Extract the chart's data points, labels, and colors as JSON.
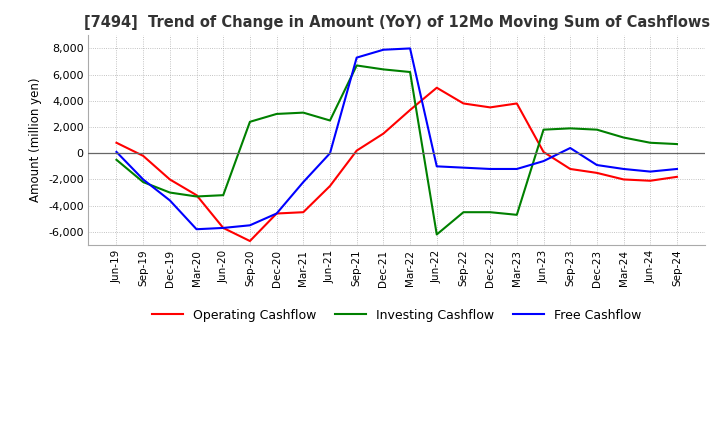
{
  "title": "[7494]  Trend of Change in Amount (YoY) of 12Mo Moving Sum of Cashflows",
  "ylabel": "Amount (million yen)",
  "ylim": [
    -7000,
    9000
  ],
  "yticks": [
    -6000,
    -4000,
    -2000,
    0,
    2000,
    4000,
    6000,
    8000
  ],
  "x_labels": [
    "Jun-19",
    "Sep-19",
    "Dec-19",
    "Mar-20",
    "Jun-20",
    "Sep-20",
    "Dec-20",
    "Mar-21",
    "Jun-21",
    "Sep-21",
    "Dec-21",
    "Mar-22",
    "Jun-22",
    "Sep-22",
    "Dec-22",
    "Mar-23",
    "Jun-23",
    "Sep-23",
    "Dec-23",
    "Mar-24",
    "Jun-24",
    "Sep-24"
  ],
  "operating": [
    800,
    -200,
    -2000,
    -3200,
    -5700,
    -6700,
    -4600,
    -4500,
    -2500,
    200,
    1500,
    3300,
    5000,
    3800,
    3500,
    3800,
    100,
    -1200,
    -1500,
    -2000,
    -2100,
    -1800
  ],
  "investing": [
    -500,
    -2200,
    -3000,
    -3300,
    -3200,
    2400,
    3000,
    3100,
    2500,
    6700,
    6400,
    6200,
    -6200,
    -4500,
    -4500,
    -4700,
    1800,
    1900,
    1800,
    1200,
    800,
    700
  ],
  "free": [
    100,
    -2000,
    -3600,
    -5800,
    -5700,
    -5500,
    -4600,
    -2200,
    0,
    7300,
    7900,
    8000,
    -1000,
    -1100,
    -1200,
    -1200,
    -600,
    400,
    -900,
    -1200,
    -1400,
    -1200
  ],
  "operating_color": "#ff0000",
  "investing_color": "#008000",
  "free_color": "#0000ff",
  "background_color": "#ffffff",
  "grid_color": "#b0b0b0"
}
